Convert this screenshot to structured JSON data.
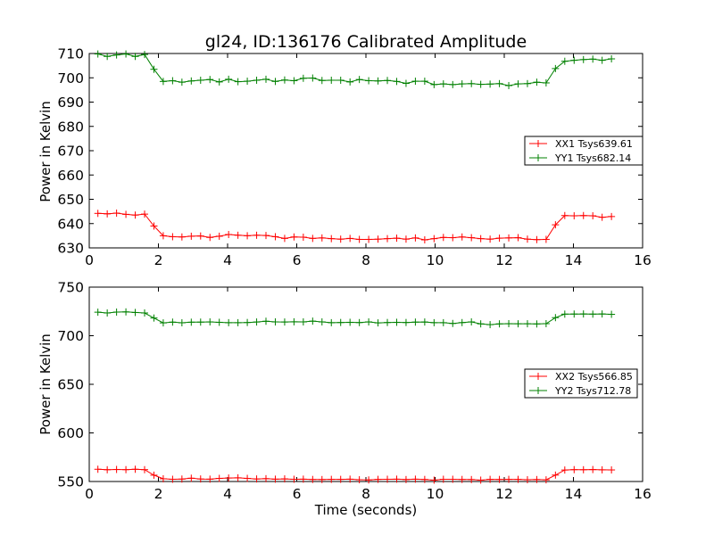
{
  "chart_data": [
    {
      "type": "line",
      "title": "gl24, ID:136176 Calibrated Amplitude",
      "xlabel": "",
      "ylabel": "Power in Kelvin",
      "xlim": [
        0,
        16
      ],
      "ylim": [
        630,
        710
      ],
      "xticks": [
        0,
        2,
        4,
        6,
        8,
        10,
        12,
        14,
        16
      ],
      "yticks": [
        630,
        640,
        650,
        660,
        670,
        680,
        690,
        700,
        710
      ],
      "grid": false,
      "legend_position": "center-right",
      "x": [
        0.25,
        0.52,
        0.79,
        1.06,
        1.33,
        1.6,
        1.87,
        2.14,
        2.41,
        2.68,
        2.95,
        3.22,
        3.49,
        3.76,
        4.03,
        4.3,
        4.57,
        4.84,
        5.11,
        5.38,
        5.65,
        5.92,
        6.19,
        6.46,
        6.73,
        7.0,
        7.27,
        7.54,
        7.81,
        8.08,
        8.35,
        8.62,
        8.89,
        9.16,
        9.43,
        9.7,
        9.97,
        10.24,
        10.51,
        10.78,
        11.05,
        11.32,
        11.59,
        11.86,
        12.13,
        12.4,
        12.67,
        12.94,
        13.21,
        13.48,
        13.75,
        14.02,
        14.29,
        14.56,
        14.83,
        15.1
      ],
      "series": [
        {
          "name": "XX1 Tsys639.61",
          "color": "#ff0000",
          "values": [
            644.2,
            644.0,
            644.3,
            643.8,
            643.5,
            643.9,
            639.0,
            635.0,
            634.6,
            634.5,
            634.8,
            634.9,
            634.3,
            634.8,
            635.5,
            635.2,
            635.0,
            635.2,
            635.1,
            634.6,
            633.9,
            634.5,
            634.4,
            633.9,
            634.1,
            633.8,
            633.6,
            633.9,
            633.5,
            633.5,
            633.6,
            633.8,
            634.0,
            633.6,
            634.1,
            633.3,
            633.8,
            634.3,
            634.2,
            634.5,
            634.2,
            633.8,
            633.6,
            634.0,
            634.1,
            634.2,
            633.6,
            633.4,
            633.5,
            639.5,
            643.3,
            643.2,
            643.3,
            643.2,
            642.6,
            642.9
          ]
        },
        {
          "name": "YY1 Tsys682.14",
          "color": "#008000",
          "values": [
            709.8,
            708.8,
            709.4,
            709.8,
            708.8,
            709.6,
            703.5,
            698.5,
            698.8,
            698.2,
            698.7,
            699.0,
            699.3,
            698.3,
            699.4,
            698.4,
            698.6,
            699.0,
            699.4,
            698.5,
            699.1,
            698.8,
            699.8,
            699.9,
            698.9,
            699.0,
            699.0,
            698.3,
            699.3,
            698.8,
            698.7,
            698.9,
            698.5,
            697.7,
            698.6,
            698.6,
            697.2,
            697.5,
            697.2,
            697.5,
            697.6,
            697.3,
            697.4,
            697.6,
            696.8,
            697.5,
            697.6,
            698.2,
            697.9,
            703.8,
            706.8,
            707.2,
            707.5,
            707.7,
            707.2,
            707.8
          ]
        }
      ]
    },
    {
      "type": "line",
      "title": "",
      "xlabel": "Time (seconds)",
      "ylabel": "Power in Kelvin",
      "xlim": [
        0,
        16
      ],
      "ylim": [
        550,
        750
      ],
      "xticks": [
        0,
        2,
        4,
        6,
        8,
        10,
        12,
        14,
        16
      ],
      "yticks": [
        550,
        600,
        650,
        700,
        750
      ],
      "grid": false,
      "legend_position": "center-right",
      "x": [
        0.25,
        0.52,
        0.79,
        1.06,
        1.33,
        1.6,
        1.87,
        2.14,
        2.41,
        2.68,
        2.95,
        3.22,
        3.49,
        3.76,
        4.03,
        4.3,
        4.57,
        4.84,
        5.11,
        5.38,
        5.65,
        5.92,
        6.19,
        6.46,
        6.73,
        7.0,
        7.27,
        7.54,
        7.81,
        8.08,
        8.35,
        8.62,
        8.89,
        9.16,
        9.43,
        9.7,
        9.97,
        10.24,
        10.51,
        10.78,
        11.05,
        11.32,
        11.59,
        11.86,
        12.13,
        12.4,
        12.67,
        12.94,
        13.21,
        13.48,
        13.75,
        14.02,
        14.29,
        14.56,
        14.83,
        15.1
      ],
      "series": [
        {
          "name": "XX2 Tsys566.85",
          "color": "#ff0000",
          "values": [
            562.6,
            562.1,
            562.4,
            562.2,
            562.6,
            562.2,
            556.5,
            552.8,
            552.3,
            552.5,
            553.4,
            552.6,
            552.4,
            553.2,
            553.6,
            553.8,
            553.2,
            552.6,
            552.9,
            552.4,
            552.7,
            552.3,
            552.4,
            552.1,
            552.0,
            552.2,
            552.2,
            552.4,
            551.8,
            551.6,
            552.2,
            552.3,
            552.4,
            552.0,
            552.4,
            552.1,
            551.4,
            552.3,
            552.3,
            552.1,
            552.0,
            551.4,
            552.2,
            552.1,
            552.2,
            552.2,
            551.8,
            552.0,
            551.7,
            556.6,
            561.8,
            562.2,
            562.1,
            562.3,
            562.0,
            561.9
          ]
        },
        {
          "name": "YY2 Tsys712.78",
          "color": "#008000",
          "values": [
            724.2,
            723.4,
            724.3,
            724.5,
            723.9,
            723.4,
            718.2,
            713.2,
            714.0,
            713.3,
            713.9,
            714.0,
            714.2,
            713.8,
            713.4,
            713.4,
            713.6,
            714.1,
            714.9,
            714.2,
            714.1,
            714.3,
            714.2,
            715.0,
            714.2,
            713.4,
            713.6,
            713.8,
            713.5,
            714.2,
            713.2,
            713.6,
            713.8,
            713.6,
            714.0,
            714.1,
            713.4,
            713.4,
            712.6,
            713.5,
            714.2,
            712.2,
            711.4,
            712.2,
            712.4,
            712.3,
            712.3,
            712.1,
            712.4,
            718.6,
            722.2,
            722.3,
            722.4,
            722.2,
            722.4,
            722.0
          ]
        }
      ]
    }
  ]
}
